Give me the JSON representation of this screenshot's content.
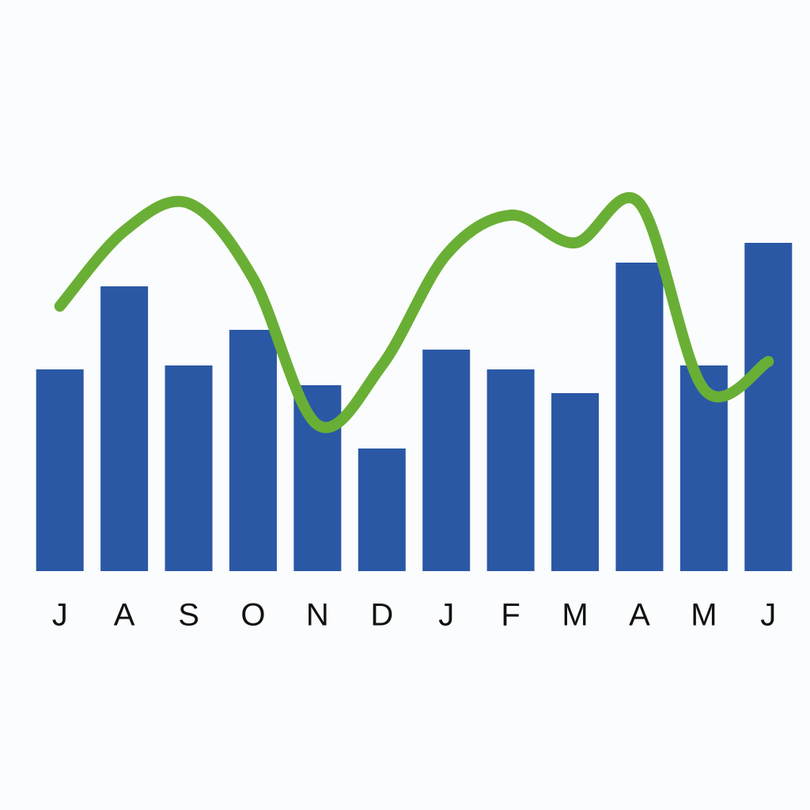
{
  "chart_data": {
    "type": "bar+line",
    "categories": [
      "J",
      "A",
      "S",
      "O",
      "N",
      "D",
      "J",
      "F",
      "M",
      "A",
      "M",
      "J"
    ],
    "series": [
      {
        "type": "bar",
        "color": "#2b58a5",
        "values": [
          51,
          72,
          52,
          61,
          47,
          31,
          56,
          51,
          45,
          78,
          52,
          83
        ]
      },
      {
        "type": "line",
        "color": "#6aaf35",
        "values": [
          67,
          86,
          93,
          74,
          37,
          52,
          80,
          90,
          83,
          93,
          46,
          53
        ]
      }
    ],
    "ylim": [
      0,
      100
    ]
  }
}
